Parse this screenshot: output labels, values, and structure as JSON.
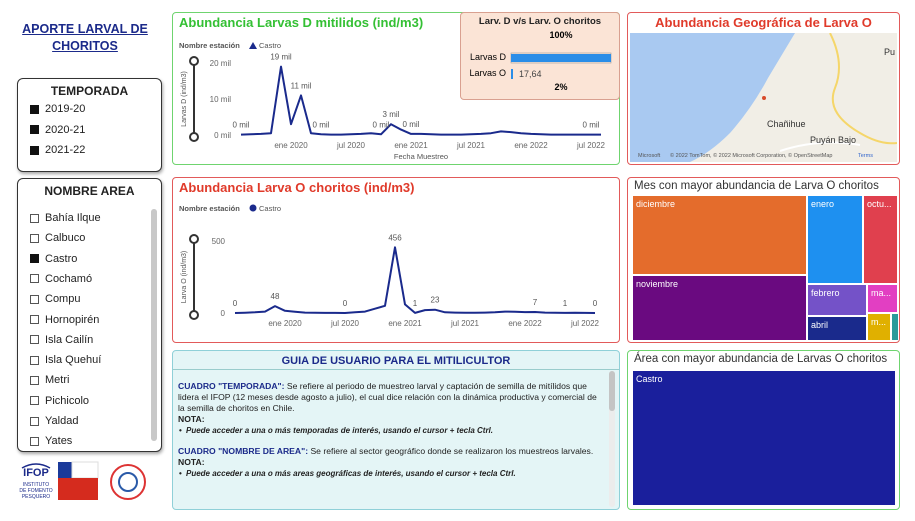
{
  "sidebar": {
    "title": "APORTE LARVAL DE CHORITOS",
    "temporada": {
      "title": "TEMPORADA",
      "items": [
        {
          "label": "2019-20",
          "selected": true
        },
        {
          "label": "2020-21",
          "selected": true
        },
        {
          "label": "2021-22",
          "selected": true
        }
      ]
    },
    "nombre_area": {
      "title": "NOMBRE AREA",
      "items": [
        {
          "label": "Bahía Ilque",
          "selected": false
        },
        {
          "label": "Calbuco",
          "selected": false
        },
        {
          "label": "Castro",
          "selected": true
        },
        {
          "label": "Cochamó",
          "selected": false
        },
        {
          "label": "Compu",
          "selected": false
        },
        {
          "label": "Hornopirén",
          "selected": false
        },
        {
          "label": "Isla Cailín",
          "selected": false
        },
        {
          "label": "Isla Quehuí",
          "selected": false
        },
        {
          "label": "Metri",
          "selected": false
        },
        {
          "label": "Pichicolo",
          "selected": false
        },
        {
          "label": "Yaldad",
          "selected": false
        },
        {
          "label": "Yates",
          "selected": false
        }
      ]
    },
    "logos": {
      "ifop": "IFOP",
      "ifop_name": [
        "INSTITUTO",
        "DE FOMENTO",
        "PESQUERO"
      ]
    }
  },
  "larvas_d": {
    "type": "line",
    "title": "Abundancia Larvas D mitilidos (ind/m3)",
    "legend_title": "Nombre estación",
    "ylabel": "Larvas D (ind/m3)",
    "xlabel": "Fecha Muestreo",
    "x": [
      "2019-08",
      "2019-09",
      "2019-10",
      "2019-11",
      "2019-12",
      "2020-01",
      "2020-02",
      "2020-03",
      "2020-04",
      "2020-05",
      "2020-06",
      "2020-07",
      "2020-08",
      "2020-09",
      "2020-10",
      "2020-11",
      "2020-12",
      "2021-01",
      "2021-02",
      "2021-03",
      "2021-04",
      "2021-05",
      "2021-06",
      "2021-07",
      "2021-08",
      "2021-09",
      "2021-10",
      "2021-11",
      "2021-12",
      "2022-01",
      "2022-02",
      "2022-03",
      "2022-04",
      "2022-05",
      "2022-06",
      "2022-07",
      "2022-08"
    ],
    "series": [
      {
        "name": "Castro",
        "color": "#1a2a8c",
        "marker": "triangle",
        "values": [
          0.1,
          0.2,
          0.3,
          0.5,
          19,
          3,
          11,
          0.5,
          0.2,
          0.1,
          0.1,
          0.2,
          0.3,
          0.5,
          0.2,
          3,
          1.5,
          0.3,
          0.3,
          0.2,
          0.1,
          0.1,
          0.1,
          0.2,
          0.3,
          0.5,
          1,
          0.8,
          0.5,
          0.3,
          0.2,
          0.1,
          0.1,
          0.1,
          0.1,
          0.1,
          0.1
        ],
        "value_labels": [
          "0 mil",
          null,
          null,
          null,
          "19 mil",
          null,
          "11 mil",
          null,
          "0 mil",
          null,
          null,
          null,
          null,
          null,
          "0 mil",
          "3 mil",
          null,
          "0 mil",
          null,
          null,
          null,
          null,
          null,
          null,
          null,
          null,
          null,
          null,
          null,
          null,
          null,
          null,
          null,
          null,
          null,
          "0 mil",
          null
        ]
      }
    ],
    "ylim": [
      0,
      20
    ],
    "yticks": [
      {
        "value": 0,
        "label": "0 mil"
      },
      {
        "value": 10,
        "label": "10 mil"
      },
      {
        "value": 20,
        "label": "20 mil"
      }
    ],
    "xlim": [
      "2019-08",
      "2022-08"
    ],
    "xticks": [
      {
        "value": "2020-01",
        "label": "ene 2020"
      },
      {
        "value": "2020-07",
        "label": "jul 2020"
      },
      {
        "value": "2021-01",
        "label": "ene 2021"
      },
      {
        "value": "2021-07",
        "label": "jul 2021"
      },
      {
        "value": "2022-01",
        "label": "ene 2022"
      },
      {
        "value": "2022-07",
        "label": "jul 2022"
      }
    ]
  },
  "comparacion": {
    "title": "Larv. D v/s Larv. O choritos",
    "bars": [
      {
        "name": "Larvas D",
        "percent": 100,
        "percent_label": "100%",
        "color": "#2a8de8"
      },
      {
        "name": "Larvas O",
        "percent": 2,
        "percent_label": "2%",
        "value_label": "17,64",
        "color": "#2a8de8"
      }
    ]
  },
  "larvas_o": {
    "type": "line",
    "title": "Abundancia Larva O choritos (ind/m3)",
    "legend_title": "Nombre estación",
    "ylabel": "Larva O (ind/m3)",
    "x": [
      "2019-08",
      "2019-09",
      "2019-10",
      "2019-11",
      "2019-12",
      "2020-01",
      "2020-02",
      "2020-03",
      "2020-04",
      "2020-05",
      "2020-06",
      "2020-07",
      "2020-08",
      "2020-09",
      "2020-10",
      "2020-11",
      "2020-12",
      "2021-01",
      "2021-02",
      "2021-03",
      "2021-04",
      "2021-05",
      "2021-06",
      "2021-07",
      "2021-08",
      "2021-09",
      "2021-10",
      "2021-11",
      "2021-12",
      "2022-01",
      "2022-02",
      "2022-03",
      "2022-04",
      "2022-05",
      "2022-06",
      "2022-07",
      "2022-08"
    ],
    "series": [
      {
        "name": "Castro",
        "color": "#1a2a8c",
        "marker": "circle",
        "values": [
          0,
          2,
          5,
          10,
          48,
          15,
          8,
          3,
          2,
          1,
          1,
          0,
          5,
          10,
          30,
          50,
          456,
          60,
          1,
          20,
          23,
          5,
          3,
          2,
          2,
          3,
          5,
          10,
          8,
          6,
          7,
          3,
          2,
          1,
          2,
          1,
          0
        ],
        "value_labels": [
          "0",
          null,
          null,
          null,
          "48",
          null,
          null,
          null,
          null,
          null,
          null,
          "0",
          null,
          null,
          null,
          null,
          "456",
          null,
          "1",
          null,
          "23",
          null,
          null,
          null,
          null,
          null,
          null,
          null,
          null,
          null,
          "7",
          null,
          null,
          "1",
          null,
          null,
          "0"
        ]
      }
    ],
    "ylim": [
      0,
      500
    ],
    "yticks": [
      0,
      500
    ],
    "xlim": [
      "2019-08",
      "2022-08"
    ],
    "xticks": [
      {
        "value": "2020-01",
        "label": "ene 2020"
      },
      {
        "value": "2020-07",
        "label": "jul 2020"
      },
      {
        "value": "2021-01",
        "label": "ene 2021"
      },
      {
        "value": "2021-07",
        "label": "jul 2021"
      },
      {
        "value": "2022-01",
        "label": "ene 2022"
      },
      {
        "value": "2022-07",
        "label": "jul 2022"
      }
    ]
  },
  "guia": {
    "title": "GUIA DE USUARIO PARA EL MITILICULTOR",
    "sections": [
      {
        "heading": "CUADRO \"TEMPORADA\":",
        "text": " Se refiere al periodo de muestreo larval y captación de semilla de mitílidos que lidera el IFOP (12 meses desde agosto a julio), el cual dice relación con la dinámica productiva y comercial de la semilla de choritos en Chile.",
        "note": "NOTA:",
        "bullet": "Puede acceder a una o más temporadas de interés, usando el cursor + tecla Ctrl."
      },
      {
        "heading": "CUADRO \"NOMBRE DE AREA\":",
        "text": " Se refiere al sector geográfico donde se realizaron los muestreos larvales.",
        "note": "NOTA:",
        "bullet": "Puede acceder a una o más areas geográficas de interés, usando el cursor + tecla Ctrl."
      }
    ]
  },
  "mapa": {
    "title": "Abundancia Geográfica de Larva O",
    "places": [
      "Chañihue",
      "Puyán Bajo",
      "Pu"
    ],
    "brand": "Microsoft",
    "attribution": "© 2022 TomTom, © 2022 Microsoft Corporation, © OpenStreetMap",
    "terms": "Terms"
  },
  "meses": {
    "title": "Mes con mayor abundancia de Larva O choritos",
    "cells": [
      "diciembre",
      "noviembre",
      "enero",
      "octu...",
      "febrero",
      "ma...",
      "abril",
      "m..."
    ]
  },
  "areas": {
    "title": "Área con mayor abundancia de Larvas O choritos",
    "cells": [
      "Castro"
    ]
  }
}
